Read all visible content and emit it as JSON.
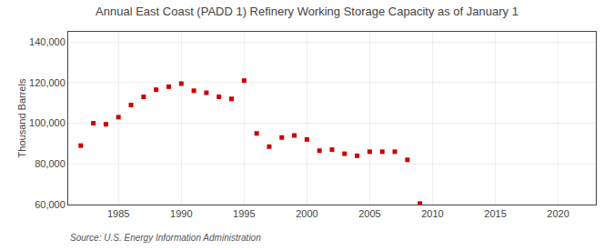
{
  "chart_data": {
    "type": "scatter",
    "title": "Annual East Coast (PADD 1) Refinery Working Storage Capacity as of January 1",
    "ylabel": "Thousand Barrels",
    "annotations": [
      "Source: U.S. Energy Information Administration"
    ],
    "x": [
      1982,
      1983,
      1984,
      1985,
      1986,
      1987,
      1988,
      1989,
      1990,
      1991,
      1992,
      1993,
      1994,
      1995,
      1996,
      1997,
      1998,
      1999,
      2000,
      2001,
      2002,
      2003,
      2004,
      2005,
      2006,
      2007,
      2008,
      2009
    ],
    "values": [
      89000,
      100000,
      99500,
      103000,
      109000,
      113000,
      116500,
      118000,
      119500,
      116000,
      115000,
      113000,
      112000,
      121000,
      95000,
      88500,
      93000,
      94000,
      92000,
      86500,
      87000,
      85000,
      84000,
      86000,
      86000,
      86000,
      82000,
      60500
    ],
    "color": "#cc0000",
    "marker": "square",
    "xlim": [
      1981,
      2023
    ],
    "ylim": [
      60000,
      145000
    ],
    "xticks": [
      1985,
      1990,
      1995,
      2000,
      2005,
      2010,
      2015,
      2020
    ],
    "yticks": [
      {
        "value": 60000,
        "label": "60,000"
      },
      {
        "value": 80000,
        "label": "80,000"
      },
      {
        "value": 100000,
        "label": "100,000"
      },
      {
        "value": 120000,
        "label": "120,000"
      },
      {
        "value": 140000,
        "label": "140,000"
      }
    ],
    "grid": true
  }
}
